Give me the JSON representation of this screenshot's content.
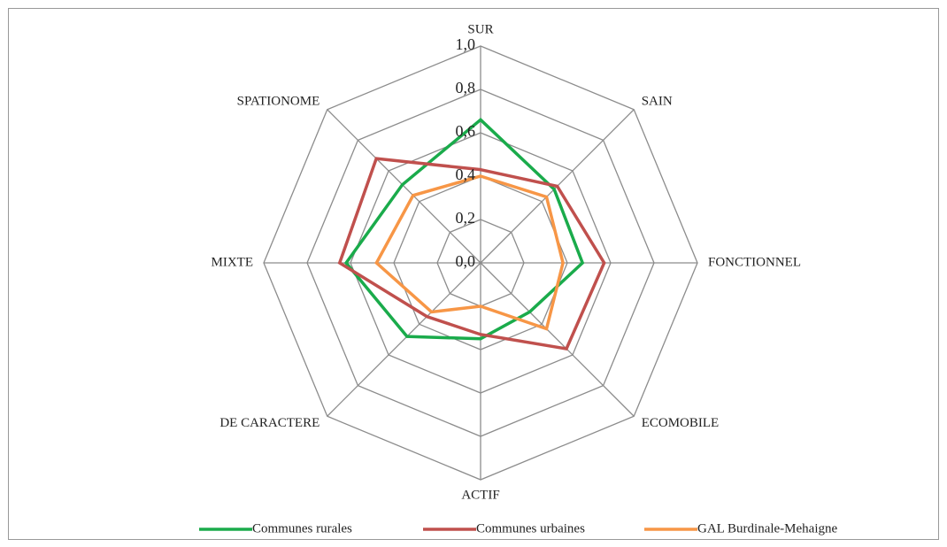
{
  "chart_data": {
    "type": "radar",
    "categories": [
      "SUR",
      "SAIN",
      "FONCTIONNEL",
      "ECOMOBILE",
      "ACTIF",
      "DE CARACTERE",
      "MIXTE",
      "SPATIONOME"
    ],
    "series": [
      {
        "name": "Communes rurales",
        "color": "#1aab4b",
        "values": [
          0.66,
          0.48,
          0.47,
          0.32,
          0.35,
          0.48,
          0.62,
          0.51
        ]
      },
      {
        "name": "Communes urbaines",
        "color": "#c0504d",
        "values": [
          0.43,
          0.5,
          0.57,
          0.56,
          0.33,
          0.35,
          0.65,
          0.68
        ]
      },
      {
        "name": "GAL Burdinale-Mehaigne",
        "color": "#f79646",
        "values": [
          0.4,
          0.43,
          0.38,
          0.43,
          0.2,
          0.32,
          0.48,
          0.44
        ]
      }
    ],
    "ylim": [
      0,
      1
    ],
    "yticks": [
      {
        "value": 0,
        "label": "0,0"
      },
      {
        "value": 0.2,
        "label": "0,2"
      },
      {
        "value": 0.4,
        "label": "0,4"
      },
      {
        "value": 0.6,
        "label": "0,6"
      },
      {
        "value": 0.8,
        "label": "0,8"
      },
      {
        "value": 1,
        "label": "1,0"
      }
    ],
    "grid": true,
    "legend": "bottom"
  }
}
